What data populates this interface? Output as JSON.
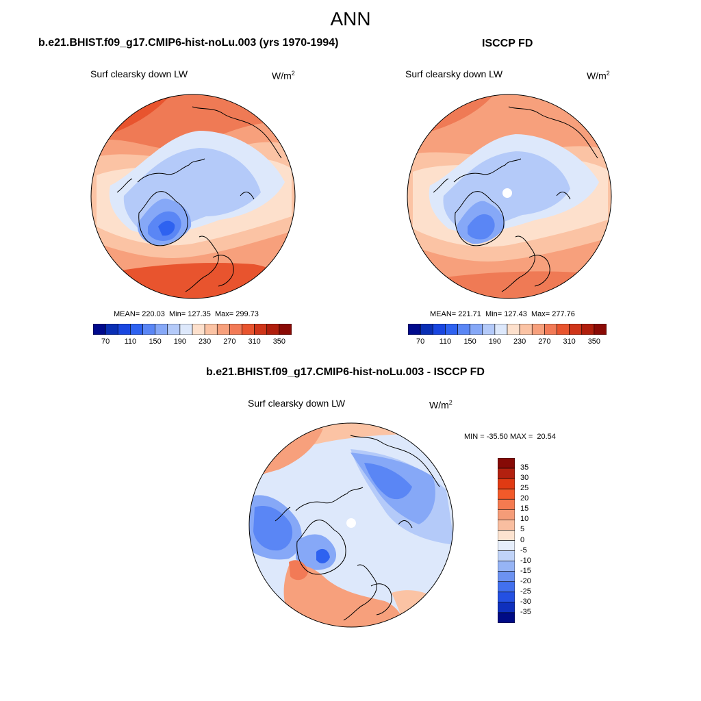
{
  "page": {
    "title": "ANN"
  },
  "panels": {
    "model": {
      "header": "b.e21.BHIST.f09_g17.CMIP6-hist-noLu.003 (yrs 1970-1994)",
      "variable": "Surf clearsky down LW",
      "units": "W/m",
      "units_sup": "2",
      "stats": "MEAN= 220.03  Min= 127.35  Max= 299.73"
    },
    "obs": {
      "header": "ISCCP FD",
      "variable": "Surf clearsky down LW",
      "units": "W/m",
      "units_sup": "2",
      "stats": "MEAN= 221.71  Min= 127.43  Max= 277.76"
    },
    "diff": {
      "header": "b.e21.BHIST.f09_g17.CMIP6-hist-noLu.003 - ISCCP FD",
      "variable": "Surf clearsky down LW",
      "units": "W/m",
      "units_sup": "2",
      "stats": "MIN = -35.50 MAX =  20.54"
    }
  },
  "colorbars": {
    "abs": {
      "ticks": [
        "70",
        "110",
        "150",
        "190",
        "230",
        "270",
        "310",
        "350"
      ],
      "colors": [
        "#000a8c",
        "#0a2fb4",
        "#1946e0",
        "#2e62f0",
        "#5a86f5",
        "#86a8f7",
        "#b4caf9",
        "#dde8fb",
        "#fde0cc",
        "#fbc3a4",
        "#f7a07c",
        "#f27a56",
        "#e8542e",
        "#cf3519",
        "#b01e0c",
        "#8a0a05"
      ]
    },
    "diff": {
      "ticks": [
        "35",
        "30",
        "25",
        "20",
        "15",
        "10",
        "5",
        "0",
        "-5",
        "-10",
        "-15",
        "-20",
        "-25",
        "-30",
        "-35"
      ],
      "colors": [
        "#860a06",
        "#b2200f",
        "#e03a13",
        "#f25a2a",
        "#f47a50",
        "#f59c78",
        "#f9bea0",
        "#fde3d0",
        "#e6eefb",
        "#c0d3f8",
        "#96b4f5",
        "#6c92f1",
        "#4270ee",
        "#2450e2",
        "#0f30bd",
        "#000b85"
      ]
    }
  },
  "maps": {
    "model_colors": {
      "outer": "#ef7a55",
      "warm1": "#f7a07c",
      "warm2": "#fbc3a4",
      "neutral": "#fde0cc",
      "cool1": "#dde8fb",
      "cool2": "#b4caf9",
      "cool3": "#86a8f7",
      "cool4": "#5a86f5",
      "cool5": "#2e62f0",
      "hot": "#e8542e"
    },
    "diff_colors": {
      "bg": "#dde8fb",
      "blue1": "#b4caf9",
      "blue2": "#86a8f7",
      "blue3": "#5a86f5",
      "blue4": "#2e62f0",
      "red1": "#f7a07c",
      "red2": "#fbc3a4",
      "red3": "#f27a56"
    }
  }
}
